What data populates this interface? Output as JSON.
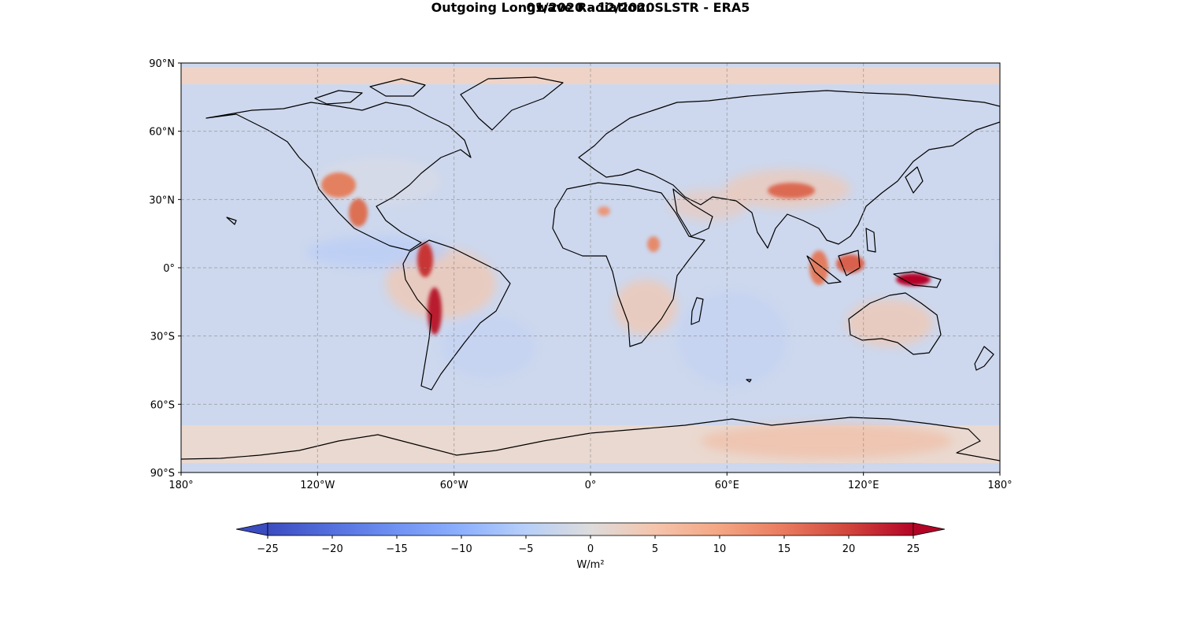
{
  "figure": {
    "title": "Outgoing Longwave Radiation: SLSTR - ERA5",
    "subtitle": "01/2020 - 12/2020"
  },
  "map": {
    "projection": "PlateCarree",
    "lon_range": [
      -180,
      180
    ],
    "lat_range": [
      -90,
      90
    ],
    "gridlines": true,
    "coastlines": true,
    "lon_ticks": [
      {
        "value": -180,
        "label": "180°"
      },
      {
        "value": -120,
        "label": "120°W"
      },
      {
        "value": -60,
        "label": "60°W"
      },
      {
        "value": 0,
        "label": "0°"
      },
      {
        "value": 60,
        "label": "60°E"
      },
      {
        "value": 120,
        "label": "120°E"
      },
      {
        "value": 180,
        "label": "180°"
      }
    ],
    "lat_ticks": [
      {
        "value": 90,
        "label": "90°N"
      },
      {
        "value": 60,
        "label": "60°N"
      },
      {
        "value": 30,
        "label": "30°N"
      },
      {
        "value": 0,
        "label": "0°"
      },
      {
        "value": -30,
        "label": "30°S"
      },
      {
        "value": -60,
        "label": "60°S"
      },
      {
        "value": -90,
        "label": "90°S"
      }
    ]
  },
  "colorbar": {
    "colormap": "coolwarm",
    "range": [
      -25,
      25
    ],
    "extend": "both",
    "ticks": [
      "−25",
      "−20",
      "−15",
      "−10",
      "−5",
      "0",
      "5",
      "10",
      "15",
      "20",
      "25"
    ],
    "label": "W/m²",
    "colors": {
      "low": "#3b4cc0",
      "mid": "#dddddd",
      "high": "#b40426"
    }
  }
}
